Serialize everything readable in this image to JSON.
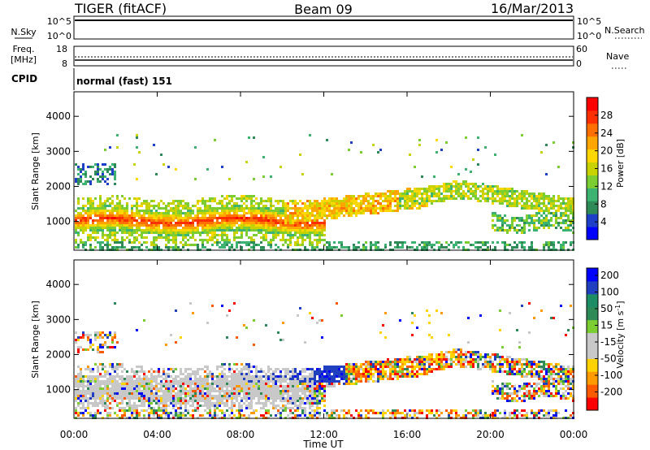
{
  "header": {
    "station": "TIGER (fitACF)",
    "beam": "Beam 09",
    "date": "16/Mar/2013"
  },
  "status_panels": {
    "nsky_label": "N.Sky",
    "nsky_ticks": [
      "10^5",
      "10^0"
    ],
    "nsearch_label": "N.Search",
    "nsearch_ticks": [
      "10^5",
      "10^0"
    ],
    "freq_label_line1": "Freq.",
    "freq_label_line2": "[MHz]",
    "freq_ticks": [
      "18",
      "8"
    ],
    "nave_label": "Nave",
    "nave_ticks": [
      "60",
      "0"
    ],
    "cpid_label": "CPID",
    "cpid_value": "normal (fast) 151"
  },
  "chart_data": [
    {
      "type": "heatmap",
      "name": "power",
      "ylabel": "Slant Range [km]",
      "ylim": [
        180,
        4700
      ],
      "y_ticks": [
        "4000",
        "3000",
        "2000",
        "1000"
      ],
      "y_tick_values": [
        4000,
        3000,
        2000,
        1000
      ],
      "colorbar_label": "Power [dB]",
      "colorbar_ticks": [
        "28",
        "24",
        "20",
        "16",
        "12",
        "8",
        "4"
      ],
      "colorbar_tick_values": [
        28,
        24,
        20,
        16,
        12,
        8,
        4
      ],
      "colorbar_range": [
        0,
        32
      ],
      "colors": [
        "#0000ff",
        "#1e40c8",
        "#2e8b57",
        "#3cb371",
        "#7ccd32",
        "#c8d200",
        "#ffd700",
        "#ffa500",
        "#ff7000",
        "#ff3000",
        "#ff0000"
      ]
    },
    {
      "type": "heatmap",
      "name": "velocity",
      "ylabel": "Slant Range [km]",
      "ylim": [
        180,
        4700
      ],
      "y_ticks": [
        "4000",
        "3000",
        "2000",
        "1000"
      ],
      "y_tick_values": [
        4000,
        3000,
        2000,
        1000
      ],
      "colorbar_label": "Velocity [m s",
      "colorbar_label_sup": "-1",
      "colorbar_label_end": "]",
      "colorbar_ticks": [
        "200",
        "100",
        "50",
        "15",
        "-15",
        "-50",
        "-100",
        "-200"
      ],
      "colors": [
        "#ff0000",
        "#ff5a00",
        "#ff9a00",
        "#ffd200",
        "#c8c8c8",
        "#c8c8c8",
        "#7ccd32",
        "#2e8b57",
        "#1e8c64",
        "#2040c0",
        "#0000ff"
      ],
      "ground_scatter_color": "#bebebe"
    }
  ],
  "time_axis": {
    "label": "Time UT",
    "ticks": [
      "00:00",
      "04:00",
      "08:00",
      "12:00",
      "16:00",
      "20:00",
      "00:00"
    ],
    "tick_hours": [
      0,
      4,
      8,
      12,
      16,
      20,
      24
    ]
  }
}
